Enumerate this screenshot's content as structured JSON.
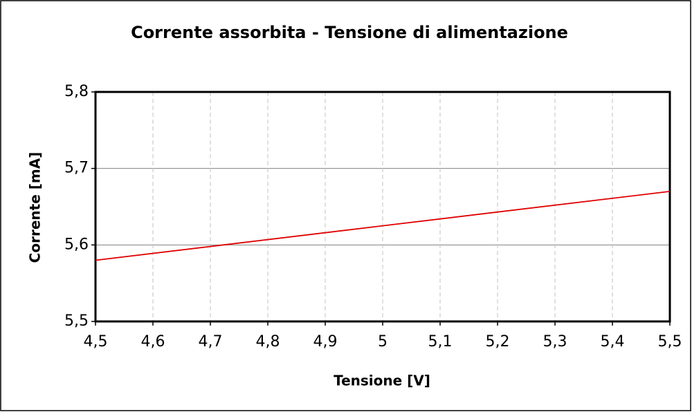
{
  "chart_data": {
    "type": "line",
    "title": "Corrente assorbita - Tensione di alimentazione",
    "xlabel": "Tensione [V]",
    "ylabel": "Corrente [mA]",
    "x": [
      4.5,
      5.0,
      5.5
    ],
    "values": [
      5.58,
      5.625,
      5.67
    ],
    "color": "#e00000",
    "xlim": [
      4.5,
      5.5
    ],
    "xticks": [
      {
        "value": 4.5,
        "label": "4,5"
      },
      {
        "value": 4.6,
        "label": "4,6"
      },
      {
        "value": 4.7,
        "label": "4,7"
      },
      {
        "value": 4.8,
        "label": "4,8"
      },
      {
        "value": 4.9,
        "label": "4,9"
      },
      5,
      {
        "value": 5.1,
        "label": "5,1"
      },
      {
        "value": 5.2,
        "label": "5,2"
      },
      {
        "value": 5.3,
        "label": "5,3"
      },
      {
        "value": 5.4,
        "label": "5,4"
      },
      {
        "value": 5.5,
        "label": "5,5"
      }
    ],
    "ylim": [
      5.5,
      5.8
    ],
    "yticks": [
      {
        "value": 5.5,
        "label": "5,5"
      },
      {
        "value": 5.6,
        "label": "5,6"
      },
      {
        "value": 5.7,
        "label": "5,7"
      },
      {
        "value": 5.8,
        "label": "5,8"
      }
    ],
    "grid": true
  }
}
